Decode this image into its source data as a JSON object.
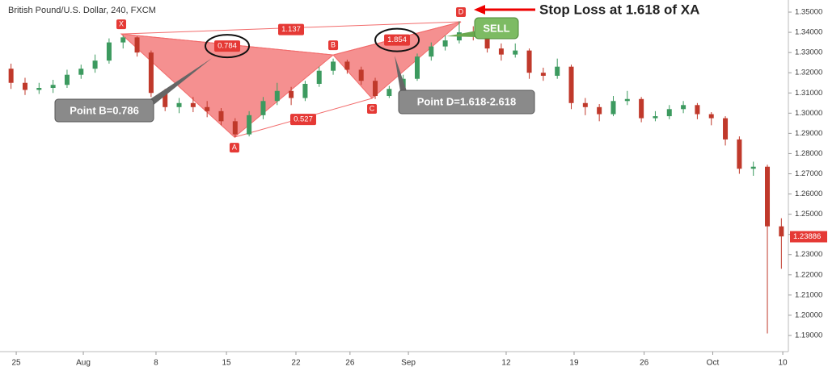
{
  "chart_data": {
    "type": "candlestick",
    "title": "British Pound/U.S. Dollar, 240, FXCM",
    "up_color": "#3c9a5f",
    "down_color": "#c0392b",
    "x": [
      0.5,
      1.5,
      2.5,
      3.5,
      4.5,
      5.5,
      6.5,
      7.5,
      8.5,
      9.5,
      10.5,
      11.5,
      12.5,
      13.5,
      14.5,
      15.5,
      16.5,
      17.5,
      18.5,
      19.5,
      20.5,
      21.5,
      22.5,
      23.5,
      24.5,
      25.5,
      26.5,
      27.5,
      28.5,
      29.5,
      30.5,
      31.5,
      32.5,
      33.5,
      34.5,
      35.5,
      36.5,
      37.5,
      38.5,
      39.5,
      40.5,
      41.5,
      42.5,
      43.5,
      44.5,
      45.5,
      46.5,
      47.5,
      48.5,
      49.5,
      50.5,
      51.5,
      52.5,
      53.5,
      54.5,
      55.5
    ],
    "open": [
      1.322,
      1.315,
      1.3115,
      1.3125,
      1.314,
      1.319,
      1.322,
      1.326,
      1.335,
      1.3375,
      1.33,
      1.31,
      1.303,
      1.305,
      1.303,
      1.301,
      1.296,
      1.2895,
      1.299,
      1.306,
      1.311,
      1.3075,
      1.3145,
      1.321,
      1.3255,
      1.3215,
      1.316,
      1.3085,
      1.312,
      1.317,
      1.328,
      1.333,
      1.336,
      1.34,
      1.339,
      1.332,
      1.329,
      1.331,
      1.32,
      1.3185,
      1.323,
      1.305,
      1.303,
      1.2995,
      1.306,
      1.307,
      1.2975,
      1.2985,
      1.302,
      1.304,
      1.2995,
      1.2975,
      1.287,
      1.2725,
      1.2735,
      1.244
    ],
    "high": [
      1.3245,
      1.3175,
      1.315,
      1.3165,
      1.3215,
      1.324,
      1.329,
      1.337,
      1.3385,
      1.338,
      1.331,
      1.312,
      1.3075,
      1.308,
      1.306,
      1.3025,
      1.2975,
      1.301,
      1.308,
      1.315,
      1.313,
      1.316,
      1.323,
      1.327,
      1.3265,
      1.323,
      1.3175,
      1.3135,
      1.319,
      1.3295,
      1.335,
      1.3385,
      1.3455,
      1.343,
      1.34,
      1.3345,
      1.3345,
      1.332,
      1.3225,
      1.327,
      1.324,
      1.3075,
      1.3045,
      1.3085,
      1.311,
      1.308,
      1.301,
      1.304,
      1.306,
      1.305,
      1.3005,
      1.2985,
      1.2885,
      1.276,
      1.2745,
      1.248
    ],
    "low": [
      1.312,
      1.309,
      1.3095,
      1.31,
      1.3125,
      1.317,
      1.32,
      1.3245,
      1.332,
      1.328,
      1.308,
      1.301,
      1.3,
      1.3005,
      1.298,
      1.294,
      1.288,
      1.2885,
      1.297,
      1.304,
      1.304,
      1.306,
      1.313,
      1.319,
      1.3195,
      1.314,
      1.307,
      1.3075,
      1.31,
      1.316,
      1.326,
      1.331,
      1.3345,
      1.336,
      1.33,
      1.326,
      1.3275,
      1.317,
      1.316,
      1.317,
      1.302,
      1.299,
      1.296,
      1.2985,
      1.304,
      1.2955,
      1.296,
      1.297,
      1.3,
      1.297,
      1.294,
      1.284,
      1.27,
      1.269,
      1.191,
      1.223
    ],
    "close": [
      1.315,
      1.3115,
      1.3125,
      1.314,
      1.319,
      1.322,
      1.326,
      1.335,
      1.3375,
      1.33,
      1.31,
      1.303,
      1.305,
      1.303,
      1.301,
      1.296,
      1.2895,
      1.299,
      1.306,
      1.311,
      1.3075,
      1.3145,
      1.321,
      1.3255,
      1.3215,
      1.316,
      1.3085,
      1.312,
      1.317,
      1.328,
      1.333,
      1.336,
      1.34,
      1.339,
      1.332,
      1.329,
      1.331,
      1.32,
      1.3185,
      1.323,
      1.305,
      1.303,
      1.2995,
      1.306,
      1.307,
      1.2975,
      1.2985,
      1.302,
      1.304,
      1.2995,
      1.2975,
      1.287,
      1.2725,
      1.2735,
      1.244,
      1.239
    ],
    "xlim": [
      0,
      56
    ],
    "xticks": [
      {
        "value": 0.87,
        "label": "25"
      },
      {
        "value": 5.66,
        "label": "Aug"
      },
      {
        "value": 10.85,
        "label": "8"
      },
      {
        "value": 15.88,
        "label": "15"
      },
      {
        "value": 20.84,
        "label": "22"
      },
      {
        "value": 24.7,
        "label": "26"
      },
      {
        "value": 28.87,
        "label": "Sep"
      },
      {
        "value": 35.85,
        "label": "12"
      },
      {
        "value": 40.7,
        "label": "19"
      },
      {
        "value": 45.7,
        "label": "26"
      },
      {
        "value": 50.6,
        "label": "Oct"
      },
      {
        "value": 55.6,
        "label": "10"
      }
    ],
    "ylim": [
      1.1836,
      1.354
    ],
    "yticks": [
      {
        "value": 1.19,
        "label": "1.19000"
      },
      {
        "value": 1.2,
        "label": "1.20000"
      },
      {
        "value": 1.21,
        "label": "1.21000"
      },
      {
        "value": 1.22,
        "label": "1.22000"
      },
      {
        "value": 1.23,
        "label": "1.23000"
      },
      {
        "value": 1.24,
        "label": "1.24000"
      },
      {
        "value": 1.25,
        "label": "1.25000"
      },
      {
        "value": 1.26,
        "label": "1.26000"
      },
      {
        "value": 1.27,
        "label": "1.27000"
      },
      {
        "value": 1.28,
        "label": "1.28000"
      },
      {
        "value": 1.29,
        "label": "1.29000"
      },
      {
        "value": 1.3,
        "label": "1.30000"
      },
      {
        "value": 1.31,
        "label": "1.31000"
      },
      {
        "value": 1.32,
        "label": "1.32000"
      },
      {
        "value": 1.33,
        "label": "1.33000"
      },
      {
        "value": 1.34,
        "label": "1.34000"
      },
      {
        "value": 1.35,
        "label": "1.35000"
      }
    ],
    "last_price": 1.23886,
    "pattern": {
      "color": "#f26b6b",
      "points": [
        {
          "label": "X",
          "x": 8.37,
          "y": 1.3392
        },
        {
          "label": "A",
          "x": 16.45,
          "y": 1.2881
        },
        {
          "label": "B",
          "x": 23.5,
          "y": 1.3288
        },
        {
          "label": "C",
          "x": 26.27,
          "y": 1.3073
        },
        {
          "label": "D",
          "x": 32.62,
          "y": 1.3452
        }
      ],
      "ratios": [
        {
          "from": "X",
          "to": "D",
          "label": "1.137",
          "circled": false
        },
        {
          "from": "X",
          "to": "B",
          "label": "0.784",
          "circled": true
        },
        {
          "from": "A",
          "to": "C",
          "label": "0.527",
          "circled": false
        },
        {
          "from": "B",
          "to": "D",
          "label": "1.854",
          "circled": true
        }
      ]
    },
    "annotations": {
      "stop_loss": "Stop Loss at 1.618 of XA",
      "sell": "SELL",
      "point_b": "Point B=0.786",
      "point_d": "Point D=1.618-2.618"
    }
  }
}
